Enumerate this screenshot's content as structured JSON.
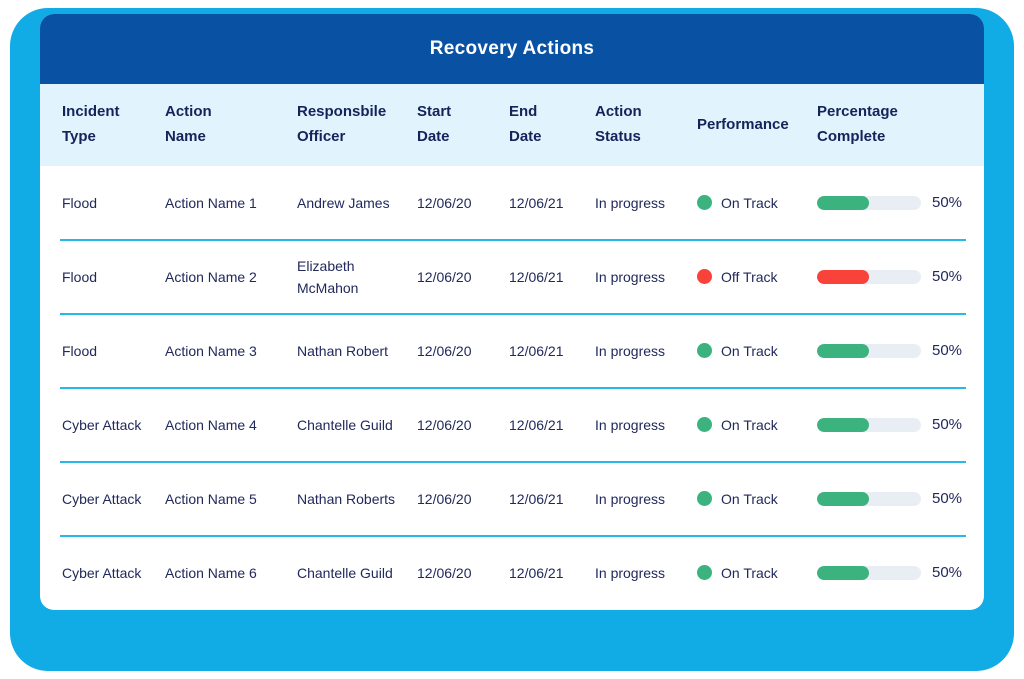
{
  "title": "Recovery Actions",
  "colors": {
    "frame": "#11ABE6",
    "header_bar": "#0952A3",
    "header_row_bg": "#E1F4FD",
    "separator": "#29B6E9",
    "text_navy": "#21295C",
    "on_track": "#3CB37F",
    "off_track": "#F9423A",
    "progress_track": "#E9EEF5"
  },
  "table": {
    "columns": [
      {
        "id": "incident_type",
        "label": "Incident\nType"
      },
      {
        "id": "action_name",
        "label": "Action\nName"
      },
      {
        "id": "officer",
        "label": "Responsbile\nOfficer"
      },
      {
        "id": "start_date",
        "label": "Start\nDate"
      },
      {
        "id": "end_date",
        "label": "End\nDate"
      },
      {
        "id": "status",
        "label": "Action\nStatus"
      },
      {
        "id": "performance",
        "label": "Performance"
      },
      {
        "id": "percent_label",
        "label": "Percentage\nComplete"
      }
    ],
    "rows": [
      {
        "incident_type": "Flood",
        "action_name": "Action Name 1",
        "officer": "Andrew James",
        "start_date": "12/06/20",
        "end_date": "12/06/21",
        "status": "In progress",
        "performance": "On Track",
        "performance_state": "on_track",
        "percent": 50,
        "percent_label": "50%"
      },
      {
        "incident_type": "Flood",
        "action_name": "Action Name 2",
        "officer": "Elizabeth McMahon",
        "start_date": "12/06/20",
        "end_date": "12/06/21",
        "status": "In progress",
        "performance": "Off Track",
        "performance_state": "off_track",
        "percent": 50,
        "percent_label": "50%"
      },
      {
        "incident_type": "Flood",
        "action_name": "Action Name 3",
        "officer": "Nathan Robert",
        "start_date": "12/06/20",
        "end_date": "12/06/21",
        "status": "In progress",
        "performance": "On Track",
        "performance_state": "on_track",
        "percent": 50,
        "percent_label": "50%"
      },
      {
        "incident_type": "Cyber Attack",
        "action_name": "Action Name 4",
        "officer": "Chantelle Guild",
        "start_date": "12/06/20",
        "end_date": "12/06/21",
        "status": "In progress",
        "performance": "On Track",
        "performance_state": "on_track",
        "percent": 50,
        "percent_label": "50%"
      },
      {
        "incident_type": "Cyber Attack",
        "action_name": "Action Name 5",
        "officer": "Nathan Roberts",
        "start_date": "12/06/20",
        "end_date": "12/06/21",
        "status": "In progress",
        "performance": "On Track",
        "performance_state": "on_track",
        "percent": 50,
        "percent_label": "50%"
      },
      {
        "incident_type": "Cyber Attack",
        "action_name": "Action Name 6",
        "officer": "Chantelle Guild",
        "start_date": "12/06/20",
        "end_date": "12/06/21",
        "status": "In progress",
        "performance": "On Track",
        "performance_state": "on_track",
        "percent": 50,
        "percent_label": "50%"
      }
    ]
  }
}
